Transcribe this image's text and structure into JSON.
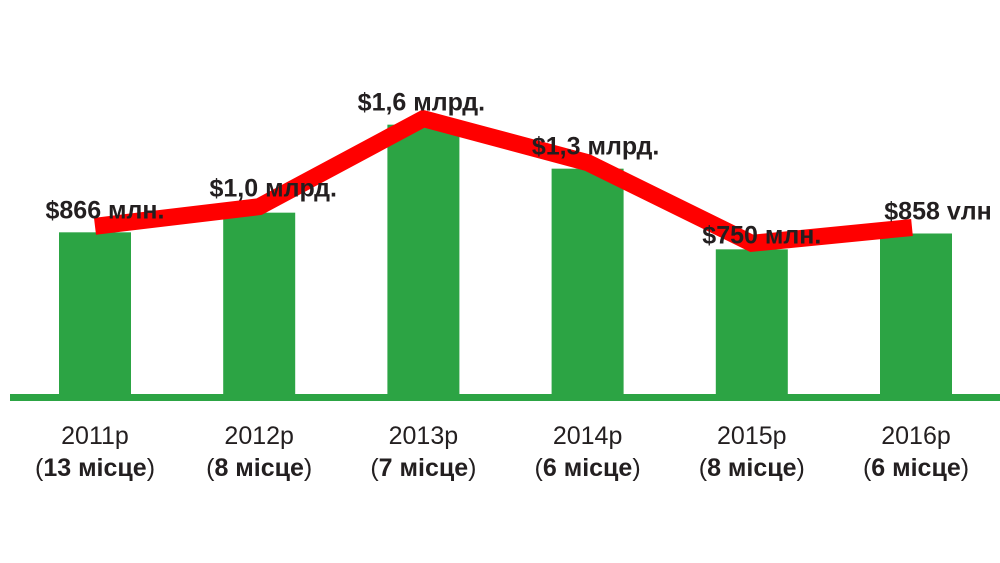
{
  "chart_data": {
    "type": "bar",
    "title": "",
    "xlabel": "",
    "ylabel": "",
    "categories": [
      "2011р",
      "2012р",
      "2013р",
      "2014р",
      "2015р",
      "2016р"
    ],
    "ranks": [
      "13 місце",
      "8 місце",
      "7 місце",
      "6 місце",
      "8 місце",
      "6 місце"
    ],
    "values": [
      866,
      1000,
      1600,
      1300,
      750,
      858
    ],
    "value_labels": [
      "$866 млн.",
      "$1,0 млрд.",
      "$1,6 млрд.",
      "$1,3 млрд.",
      "$750 млн.",
      "$858 vлн"
    ],
    "units": "USD million",
    "ylim": [
      -250,
      2450
    ],
    "grid": false,
    "overlay_line": true,
    "colors": {
      "bar": "#2ca444",
      "line": "#ff0000",
      "axis": "#2ca444",
      "text": "#231f20"
    }
  }
}
